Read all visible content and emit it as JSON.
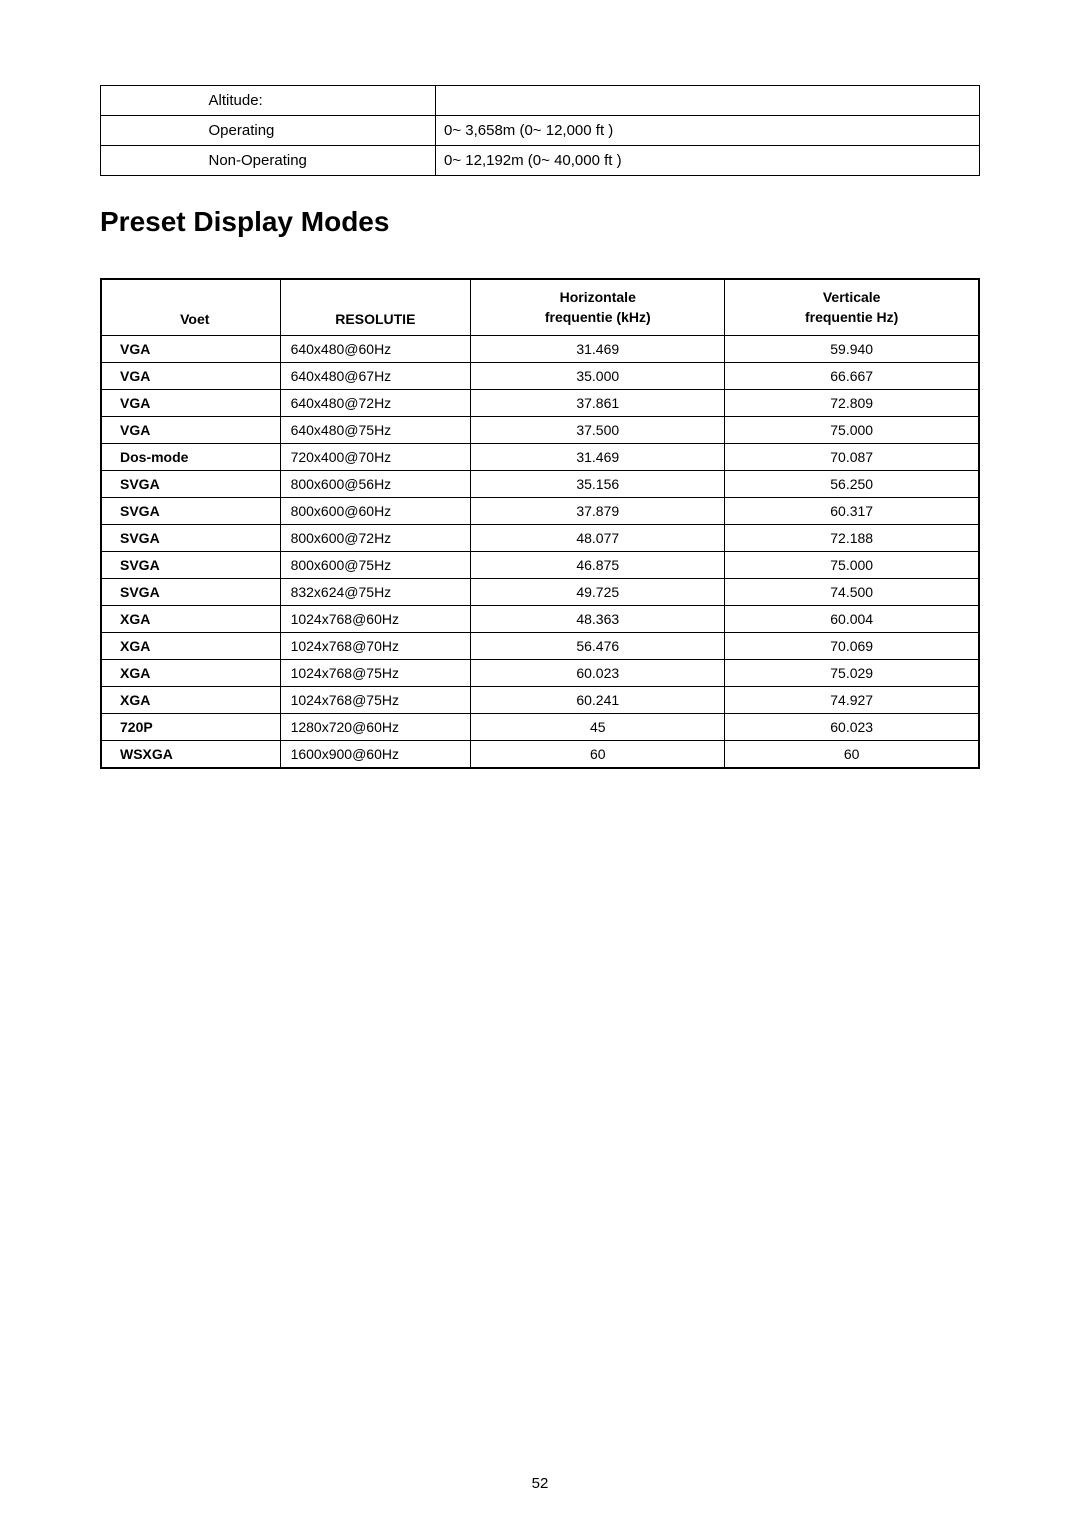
{
  "altitude_table": {
    "rows": [
      {
        "left": "",
        "label": "Altitude:",
        "value": ""
      },
      {
        "left": "",
        "label": "Operating",
        "value": "0~ 3,658m (0~ 12,000 ft )"
      },
      {
        "left": "",
        "label": "Non-Operating",
        "value": "0~ 12,192m (0~ 40,000 ft )"
      }
    ]
  },
  "section_title": "Preset Display Modes",
  "modes_table": {
    "headers": {
      "voet": "Voet",
      "res": "RESOLUTIE",
      "h_line1": "Horizontale",
      "h_line2": "frequentie (kHz)",
      "v_line1": "Verticale",
      "v_line2": "frequentie Hz)"
    },
    "rows": [
      {
        "voet": "VGA",
        "res": "640x480@60Hz",
        "h": "31.469",
        "v": "59.940"
      },
      {
        "voet": "VGA",
        "res": "640x480@67Hz",
        "h": "35.000",
        "v": "66.667"
      },
      {
        "voet": "VGA",
        "res": "640x480@72Hz",
        "h": "37.861",
        "v": "72.809"
      },
      {
        "voet": "VGA",
        "res": "640x480@75Hz",
        "h": "37.500",
        "v": "75.000"
      },
      {
        "voet": "Dos-mode",
        "res": "720x400@70Hz",
        "h": "31.469",
        "v": "70.087"
      },
      {
        "voet": "SVGA",
        "res": "800x600@56Hz",
        "h": "35.156",
        "v": "56.250"
      },
      {
        "voet": "SVGA",
        "res": "800x600@60Hz",
        "h": "37.879",
        "v": "60.317"
      },
      {
        "voet": "SVGA",
        "res": "800x600@72Hz",
        "h": "48.077",
        "v": "72.188"
      },
      {
        "voet": "SVGA",
        "res": "800x600@75Hz",
        "h": "46.875",
        "v": "75.000"
      },
      {
        "voet": "SVGA",
        "res": "832x624@75Hz",
        "h": "49.725",
        "v": "74.500"
      },
      {
        "voet": "XGA",
        "res": "1024x768@60Hz",
        "h": "48.363",
        "v": "60.004"
      },
      {
        "voet": "XGA",
        "res": "1024x768@70Hz",
        "h": "56.476",
        "v": "70.069"
      },
      {
        "voet": "XGA",
        "res": "1024x768@75Hz",
        "h": "60.023",
        "v": "75.029"
      },
      {
        "voet": "XGA",
        "res": "1024x768@75Hz",
        "h": "60.241",
        "v": "74.927"
      },
      {
        "voet": "720P",
        "res": "1280x720@60Hz",
        "h": "45",
        "v": "60.023"
      },
      {
        "voet": "WSXGA",
        "res": "1600x900@60Hz",
        "h": "60",
        "v": "60"
      }
    ]
  },
  "page_number": "52"
}
